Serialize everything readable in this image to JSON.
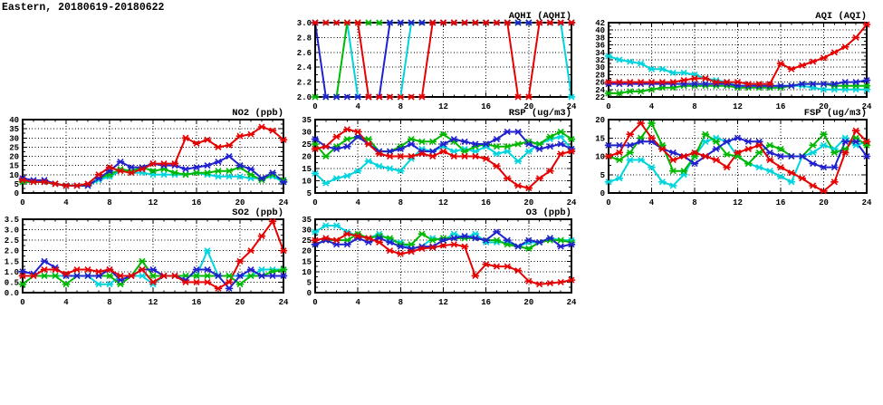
{
  "page_title": "Eastern, 20180619-20180622",
  "colors": {
    "red": "#e60000",
    "blue": "#2020cf",
    "green": "#00b800",
    "cyan": "#00d4dc"
  },
  "chart_data": [
    {
      "id": "aqhi",
      "type": "line",
      "title": "AQHI (AQHI)",
      "xlabel": "",
      "ylabel": "",
      "xlim": [
        0,
        24
      ],
      "ylim": [
        2.0,
        3.0
      ],
      "xticks": [
        0,
        4,
        8,
        12,
        16,
        20,
        24
      ],
      "yticks": [
        2.0,
        2.2,
        2.4,
        2.6,
        2.8,
        3.0
      ],
      "ydec": 1,
      "grid": true,
      "legend": "none",
      "series": [
        {
          "name": "series-cyan",
          "color": "cyan",
          "values": [
            3,
            3,
            3,
            3,
            2,
            2,
            2,
            2,
            2,
            3,
            3,
            3,
            3,
            3,
            3,
            3,
            3,
            3,
            3,
            3,
            3,
            3,
            3,
            3,
            2
          ]
        },
        {
          "name": "series-green",
          "color": "green",
          "values": [
            2,
            2,
            2,
            3,
            3,
            3,
            3,
            3,
            3,
            3,
            3,
            3,
            3,
            3,
            3,
            3,
            3,
            3,
            3,
            3,
            3,
            3,
            3,
            3,
            3
          ]
        },
        {
          "name": "series-blue",
          "color": "blue",
          "values": [
            3,
            2,
            2,
            2,
            2,
            2,
            2,
            3,
            3,
            3,
            3,
            3,
            3,
            3,
            3,
            3,
            3,
            3,
            3,
            3,
            3,
            3,
            3,
            3,
            3
          ]
        },
        {
          "name": "series-red",
          "color": "red",
          "values": [
            3,
            3,
            3,
            3,
            3,
            2,
            2,
            2,
            2,
            2,
            2,
            3,
            3,
            3,
            3,
            3,
            3,
            3,
            3,
            2,
            2,
            3,
            3,
            3,
            3
          ]
        }
      ]
    },
    {
      "id": "aqi",
      "type": "line",
      "title": "AQI (AQI)",
      "xlabel": "",
      "ylabel": "",
      "xlim": [
        0,
        24
      ],
      "ylim": [
        22,
        42
      ],
      "xticks": [
        0,
        4,
        8,
        12,
        16,
        20,
        24
      ],
      "yticks": [
        22,
        24,
        26,
        28,
        30,
        32,
        34,
        36,
        38,
        40,
        42
      ],
      "ydec": 0,
      "grid": true,
      "legend": "none",
      "series": [
        {
          "name": "series-cyan",
          "color": "cyan",
          "values": [
            33,
            32,
            31.5,
            31,
            29.5,
            29.5,
            28.5,
            28.5,
            28,
            27,
            26.5,
            26,
            25,
            25,
            25,
            24.5,
            24.5,
            25,
            25,
            24.5,
            24,
            24,
            24,
            24,
            24
          ]
        },
        {
          "name": "series-green",
          "color": "green",
          "values": [
            23,
            23,
            23.5,
            23.5,
            24,
            24.5,
            24.5,
            25,
            25,
            25,
            25,
            25,
            24.5,
            24.5,
            24.5,
            24.5,
            24.5,
            25,
            25.5,
            25.5,
            25.5,
            25,
            25,
            25,
            25
          ]
        },
        {
          "name": "series-blue",
          "color": "blue",
          "values": [
            25.5,
            25.5,
            25.5,
            25.5,
            25.5,
            25.5,
            25.5,
            25.5,
            25.5,
            25.5,
            25.5,
            25.5,
            25,
            25,
            25,
            25,
            25,
            25,
            25.5,
            25.5,
            25.5,
            25.5,
            26,
            26,
            26.5
          ]
        },
        {
          "name": "series-red",
          "color": "red",
          "values": [
            26,
            26,
            26,
            26,
            26,
            26,
            26,
            26.5,
            27,
            27,
            26,
            26,
            26,
            25.5,
            25.5,
            25.5,
            31,
            29.5,
            30.5,
            31.5,
            32.5,
            34,
            35.5,
            38,
            41.5
          ]
        }
      ]
    },
    {
      "id": "no2",
      "type": "line",
      "title": "NO2 (ppb)",
      "xlabel": "",
      "ylabel": "",
      "xlim": [
        0,
        24
      ],
      "ylim": [
        0,
        40
      ],
      "xticks": [
        0,
        4,
        8,
        12,
        16,
        20,
        24
      ],
      "yticks": [
        0,
        5,
        10,
        15,
        20,
        25,
        30,
        35,
        40
      ],
      "ydec": 0,
      "grid": true,
      "legend": "none",
      "series": [
        {
          "name": "series-cyan",
          "color": "cyan",
          "values": [
            6,
            6,
            6,
            5,
            4,
            4,
            4,
            7,
            9,
            12,
            11,
            11,
            10,
            10,
            10,
            10,
            11,
            10,
            9,
            9,
            9,
            8,
            8,
            9,
            6
          ]
        },
        {
          "name": "series-green",
          "color": "green",
          "values": [
            6,
            6,
            6,
            5,
            4,
            4,
            4,
            8,
            10,
            13,
            12,
            14,
            12,
            13,
            11,
            10,
            11,
            11,
            12,
            12,
            14,
            10,
            7,
            10,
            7
          ]
        },
        {
          "name": "series-blue",
          "color": "blue",
          "values": [
            8,
            7,
            7,
            5,
            4,
            4,
            4,
            8,
            12,
            17,
            14,
            14,
            16,
            15,
            15,
            13,
            14,
            15,
            17,
            20,
            15,
            13,
            8,
            11,
            6
          ]
        },
        {
          "name": "series-red",
          "color": "red",
          "values": [
            7,
            6,
            6,
            5,
            4,
            4,
            5,
            10,
            14,
            12,
            11,
            13,
            16,
            16,
            16,
            30,
            27,
            29,
            25,
            26,
            31,
            32,
            36,
            34,
            29
          ]
        }
      ]
    },
    {
      "id": "rsp",
      "type": "line",
      "title": "RSP (ug/m3)",
      "xlabel": "",
      "ylabel": "",
      "xlim": [
        0,
        24
      ],
      "ylim": [
        5,
        35
      ],
      "xticks": [
        0,
        4,
        8,
        12,
        16,
        20,
        24
      ],
      "yticks": [
        5,
        10,
        15,
        20,
        25,
        30,
        35
      ],
      "ydec": 0,
      "grid": true,
      "legend": "none",
      "series": [
        {
          "name": "series-cyan",
          "color": "cyan",
          "values": [
            13,
            9,
            11,
            12,
            14,
            18,
            16,
            15,
            14,
            19,
            23,
            22,
            24,
            22,
            23,
            22,
            24,
            21,
            22,
            18,
            22,
            25,
            27,
            28,
            23
          ]
        },
        {
          "name": "series-green",
          "color": "green",
          "values": [
            25,
            20,
            24,
            27,
            28,
            27,
            22,
            22,
            24,
            27,
            26,
            26,
            29,
            26,
            22,
            24,
            25,
            24,
            24,
            25,
            26,
            25,
            28,
            30,
            27
          ]
        },
        {
          "name": "series-blue",
          "color": "blue",
          "values": [
            27,
            24,
            23,
            24,
            28,
            25,
            22,
            22,
            23,
            25,
            22,
            22,
            25,
            27,
            26,
            25,
            25,
            27,
            30,
            30,
            25,
            23,
            24,
            25,
            23
          ]
        },
        {
          "name": "series-red",
          "color": "red",
          "values": [
            23,
            24,
            28,
            31,
            30,
            25,
            21,
            20,
            20,
            20,
            21,
            20,
            22,
            20,
            20,
            20,
            19,
            16,
            11,
            8,
            7,
            11,
            14,
            21,
            22
          ]
        }
      ]
    },
    {
      "id": "fsp",
      "type": "line",
      "title": "FSP (ug/m3)",
      "xlabel": "",
      "ylabel": "",
      "xlim": [
        0,
        24
      ],
      "ylim": [
        0,
        20
      ],
      "xticks": [
        0,
        4,
        8,
        12,
        16,
        20,
        24
      ],
      "yticks": [
        0,
        5,
        10,
        15,
        20
      ],
      "ydec": 0,
      "grid": true,
      "legend": "none",
      "series": [
        {
          "name": "series-cyan",
          "color": "cyan",
          "values": [
            3,
            4,
            9,
            9,
            7,
            3,
            2,
            5,
            10,
            14,
            15,
            14,
            10,
            8,
            7,
            6,
            4.5,
            3,
            10,
            11,
            13,
            12,
            15,
            13,
            14
          ]
        },
        {
          "name": "series-green",
          "color": "green",
          "values": [
            10,
            9,
            11,
            15,
            19,
            13,
            6,
            6,
            10,
            16,
            14,
            10.5,
            10,
            8,
            11,
            13,
            12,
            10,
            10,
            13,
            16,
            11,
            12,
            15,
            13
          ]
        },
        {
          "name": "series-blue",
          "color": "blue",
          "values": [
            13,
            13,
            13,
            14,
            14,
            12,
            11,
            10,
            8,
            10,
            12,
            14,
            15,
            14,
            14,
            11,
            10,
            10,
            10,
            8,
            7,
            7,
            14,
            14,
            10
          ]
        },
        {
          "name": "series-red",
          "color": "red",
          "values": [
            10,
            11,
            16,
            19,
            15,
            12,
            9,
            10,
            11,
            10,
            9,
            7,
            11,
            12,
            13,
            9,
            7,
            5.5,
            4,
            2,
            0.5,
            3,
            11,
            17,
            14
          ]
        }
      ]
    },
    {
      "id": "so2",
      "type": "line",
      "title": "SO2 (ppb)",
      "xlabel": "",
      "ylabel": "",
      "xlim": [
        0,
        24
      ],
      "ylim": [
        0,
        3.5
      ],
      "xticks": [
        0,
        4,
        8,
        12,
        16,
        20,
        24
      ],
      "yticks": [
        0.0,
        0.5,
        1.0,
        1.5,
        2.0,
        2.5,
        3.0,
        3.5
      ],
      "ydec": 1,
      "grid": true,
      "legend": "none",
      "series": [
        {
          "name": "series-cyan",
          "color": "cyan",
          "values": [
            0.8,
            0.8,
            0.8,
            0.8,
            0.8,
            0.8,
            0.8,
            0.4,
            0.4,
            0.8,
            0.8,
            0.8,
            0.4,
            0.8,
            0.8,
            0.8,
            0.8,
            2.0,
            0.8,
            0.8,
            0.8,
            0.8,
            1.1,
            1.1,
            1.1
          ]
        },
        {
          "name": "series-green",
          "color": "green",
          "values": [
            0.4,
            0.8,
            0.8,
            0.8,
            0.4,
            0.8,
            0.8,
            0.8,
            0.8,
            0.4,
            0.8,
            1.5,
            0.8,
            0.8,
            0.8,
            0.8,
            0.8,
            0.8,
            0.8,
            0.8,
            0.4,
            0.8,
            0.8,
            1.0,
            1.1
          ]
        },
        {
          "name": "series-blue",
          "color": "blue",
          "values": [
            1.0,
            0.9,
            1.5,
            1.2,
            0.8,
            0.8,
            0.8,
            0.8,
            1.1,
            0.6,
            0.8,
            1.1,
            1.1,
            0.8,
            0.8,
            0.6,
            1.1,
            1.1,
            0.8,
            0.2,
            0.8,
            1.1,
            0.8,
            0.8,
            0.8
          ]
        },
        {
          "name": "series-red",
          "color": "red",
          "values": [
            0.8,
            0.8,
            1.1,
            1.1,
            0.9,
            1.1,
            1.1,
            1.0,
            1.1,
            0.8,
            0.8,
            1.1,
            0.5,
            0.8,
            0.8,
            0.5,
            0.5,
            0.5,
            0.2,
            0.5,
            1.5,
            2.0,
            2.7,
            3.4,
            2.0
          ]
        }
      ]
    },
    {
      "id": "o3",
      "type": "line",
      "title": "O3 (ppb)",
      "xlabel": "",
      "ylabel": "",
      "xlim": [
        0,
        24
      ],
      "ylim": [
        0,
        35
      ],
      "xticks": [
        0,
        4,
        8,
        12,
        16,
        20,
        24
      ],
      "yticks": [
        0,
        5,
        10,
        15,
        20,
        25,
        30,
        35
      ],
      "ydec": 0,
      "grid": true,
      "legend": "none",
      "series": [
        {
          "name": "series-cyan",
          "color": "cyan",
          "values": [
            29,
            32,
            32,
            29,
            27,
            26,
            28,
            25,
            24,
            21,
            22,
            26,
            25,
            28,
            26,
            28,
            24,
            24,
            24,
            22,
            24,
            24,
            26,
            25,
            25
          ]
        },
        {
          "name": "series-green",
          "color": "green",
          "values": [
            23,
            25,
            25,
            25,
            28,
            26,
            27,
            26,
            23,
            23,
            28,
            25,
            26,
            26,
            26,
            26,
            25,
            25,
            23,
            22,
            21,
            24,
            25,
            25,
            24
          ]
        },
        {
          "name": "series-blue",
          "color": "blue",
          "values": [
            23,
            25,
            23,
            23,
            26,
            24,
            26,
            24,
            22,
            21,
            22,
            22,
            25,
            26,
            27,
            26,
            25,
            29,
            25,
            22,
            25,
            24,
            26,
            22,
            23
          ]
        },
        {
          "name": "series-red",
          "color": "red",
          "values": [
            25,
            26,
            25,
            28,
            27,
            26,
            24,
            20,
            18.5,
            19.5,
            21,
            21.5,
            22.5,
            23,
            22,
            8,
            13.5,
            12.5,
            12.5,
            10.5,
            5.5,
            4,
            4.5,
            5,
            6
          ]
        }
      ]
    }
  ]
}
